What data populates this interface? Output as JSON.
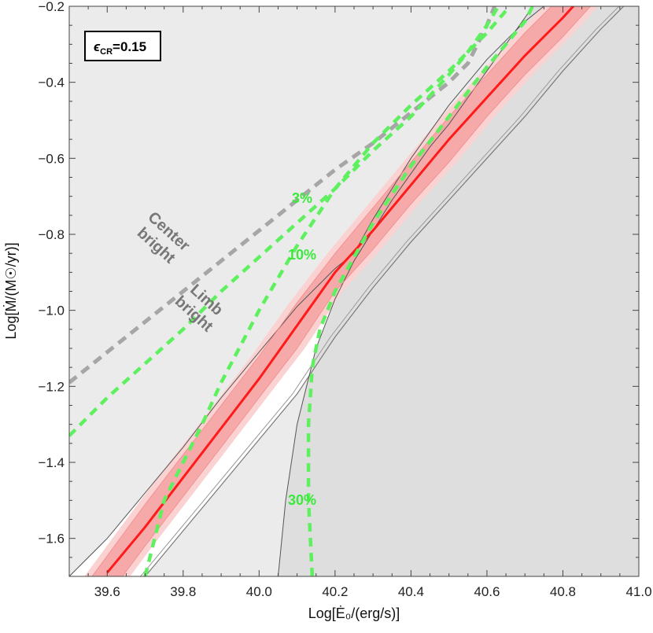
{
  "chart_data": {
    "type": "line",
    "xlabel": "Log[Ė₀/(erg/s)]",
    "ylabel": "Log[Ṁ/(M☉/yr)]",
    "xlim": [
      39.5,
      41.0
    ],
    "ylim": [
      -1.7,
      -0.2
    ],
    "x_ticks": [
      39.6,
      39.8,
      40.0,
      40.2,
      40.4,
      40.6,
      40.8,
      41.0
    ],
    "x_tick_labels": [
      "39.6",
      "39.8",
      "40.0",
      "40.2",
      "40.4",
      "40.6",
      "40.8",
      "41.0"
    ],
    "y_ticks": [
      -1.6,
      -1.4,
      -1.2,
      -1.0,
      -0.8,
      -0.6,
      -0.4,
      -0.2
    ],
    "y_tick_labels": [
      "−1.6",
      "−1.4",
      "−1.2",
      "−1.0",
      "−0.8",
      "−0.6",
      "−0.4",
      "−0.2"
    ],
    "grid": false,
    "legend": {
      "epsilon_symbol": "ϵ",
      "epsilon_subscript": "CR",
      "epsilon_value": "=0.15",
      "position": "top-left"
    },
    "annotations": {
      "center_bright": [
        "Center",
        "bright"
      ],
      "limb_bright": [
        "Limb",
        "bright"
      ],
      "pct_3": "3%",
      "pct_10": "10%",
      "pct_30": "30%"
    },
    "colors": {
      "best_fit": "#ff1a1a",
      "best_fit_band": "#f8b6b6",
      "boundary_dashed": "#a6a6a6",
      "contours": "#5ef05e",
      "shade_left": "#ebebeb",
      "shade_right": "#dedede",
      "allowed": "#ffffff"
    },
    "series": [
      {
        "kind": "best-fit line",
        "x": [
          39.6,
          39.7,
          39.8,
          39.9,
          40.0,
          40.1,
          40.2,
          40.3,
          40.4,
          40.5,
          40.6,
          40.7,
          40.8,
          40.9
        ],
        "y": [
          -1.69,
          -1.57,
          -1.44,
          -1.31,
          -1.18,
          -1.04,
          -0.9,
          -0.79,
          -0.67,
          -0.55,
          -0.44,
          -0.33,
          -0.23,
          -0.12
        ]
      },
      {
        "kind": "band upper",
        "x": [
          39.56,
          39.7,
          39.8,
          39.9,
          40.0,
          40.1,
          40.2,
          40.3,
          40.4,
          40.5,
          40.6,
          40.7,
          40.8
        ],
        "y": [
          -1.7,
          -1.51,
          -1.38,
          -1.25,
          -1.12,
          -0.98,
          -0.85,
          -0.73,
          -0.61,
          -0.49,
          -0.38,
          -0.27,
          -0.17
        ]
      },
      {
        "kind": "band lower",
        "x": [
          39.64,
          39.7,
          39.8,
          39.9,
          40.0,
          40.1,
          40.2,
          40.3,
          40.4,
          40.5,
          40.6,
          40.7,
          40.8,
          40.9
        ],
        "y": [
          -1.7,
          -1.62,
          -1.49,
          -1.36,
          -1.23,
          -1.1,
          -0.95,
          -0.84,
          -0.72,
          -0.61,
          -0.49,
          -0.38,
          -0.28,
          -0.17
        ]
      },
      {
        "kind": "allowed-region upper boundary",
        "x": [
          39.5,
          39.6,
          39.7,
          39.8,
          39.9,
          40.0,
          40.1,
          40.2,
          40.25
        ],
        "y": [
          -1.7,
          -1.6,
          -1.48,
          -1.36,
          -1.23,
          -1.11,
          -0.99,
          -0.89,
          -0.85
        ]
      },
      {
        "kind": "allowed-region lower boundary",
        "x": [
          39.7,
          39.8,
          39.9,
          40.0,
          40.1,
          40.2,
          40.3,
          40.4,
          40.5,
          40.6,
          40.7,
          40.8,
          40.9,
          41.0
        ],
        "y": [
          -1.7,
          -1.58,
          -1.46,
          -1.34,
          -1.22,
          -1.07,
          -0.94,
          -0.82,
          -0.71,
          -0.6,
          -0.49,
          -0.37,
          -0.26,
          -0.16
        ]
      },
      {
        "kind": "steep thin curve",
        "x": [
          40.05,
          40.07,
          40.1,
          40.15,
          40.2,
          40.25,
          40.3,
          40.35,
          40.4,
          40.45,
          40.5,
          40.55,
          40.6,
          40.65,
          40.7,
          40.75,
          40.78
        ],
        "y": [
          -1.7,
          -1.5,
          -1.3,
          -1.1,
          -0.97,
          -0.87,
          -0.79,
          -0.71,
          -0.64,
          -0.57,
          -0.51,
          -0.44,
          -0.37,
          -0.3,
          -0.23,
          -0.16,
          -0.12
        ]
      },
      {
        "kind": "thin line to upper right",
        "x": [
          40.25,
          40.3,
          40.4,
          40.5,
          40.6,
          40.7,
          40.75
        ],
        "y": [
          -0.85,
          -0.76,
          -0.6,
          -0.46,
          -0.34,
          -0.24,
          -0.2
        ]
      },
      {
        "kind": "dashed boundary (Center/Limb bright)",
        "x": [
          39.5,
          39.6,
          39.7,
          39.8,
          39.9,
          40.0,
          40.1,
          40.2,
          40.3,
          40.4,
          40.5,
          40.55,
          40.6,
          40.62
        ],
        "y": [
          -1.19,
          -1.11,
          -1.03,
          -0.95,
          -0.87,
          -0.79,
          -0.71,
          -0.63,
          -0.56,
          -0.48,
          -0.4,
          -0.35,
          -0.25,
          -0.2
        ]
      },
      {
        "kind": "contour 3%",
        "x": [
          39.5,
          39.6,
          39.7,
          39.8,
          39.9,
          40.0,
          40.1,
          40.2,
          40.3,
          40.4,
          40.5,
          40.55,
          40.6,
          40.63
        ],
        "y": [
          -1.33,
          -1.23,
          -1.14,
          -1.05,
          -0.95,
          -0.86,
          -0.77,
          -0.68,
          -0.58,
          -0.49,
          -0.38,
          -0.32,
          -0.25,
          -0.2
        ]
      },
      {
        "kind": "contour 10%",
        "x": [
          39.7,
          39.75,
          39.8,
          39.85,
          39.9,
          40.0,
          40.1,
          40.2,
          40.3,
          40.4,
          40.5,
          40.6,
          40.66
        ],
        "y": [
          -1.7,
          -1.5,
          -1.4,
          -1.3,
          -1.19,
          -1.0,
          -0.83,
          -0.68,
          -0.56,
          -0.46,
          -0.37,
          -0.27,
          -0.2
        ]
      },
      {
        "kind": "contour 30%",
        "x": [
          40.14,
          40.13,
          40.13,
          40.14,
          40.16,
          40.2,
          40.25,
          40.3,
          40.4,
          40.5,
          40.6,
          40.7,
          40.72
        ],
        "y": [
          -1.7,
          -1.5,
          -1.3,
          -1.15,
          -1.05,
          -0.95,
          -0.86,
          -0.77,
          -0.62,
          -0.49,
          -0.36,
          -0.24,
          -0.2
        ]
      }
    ]
  }
}
